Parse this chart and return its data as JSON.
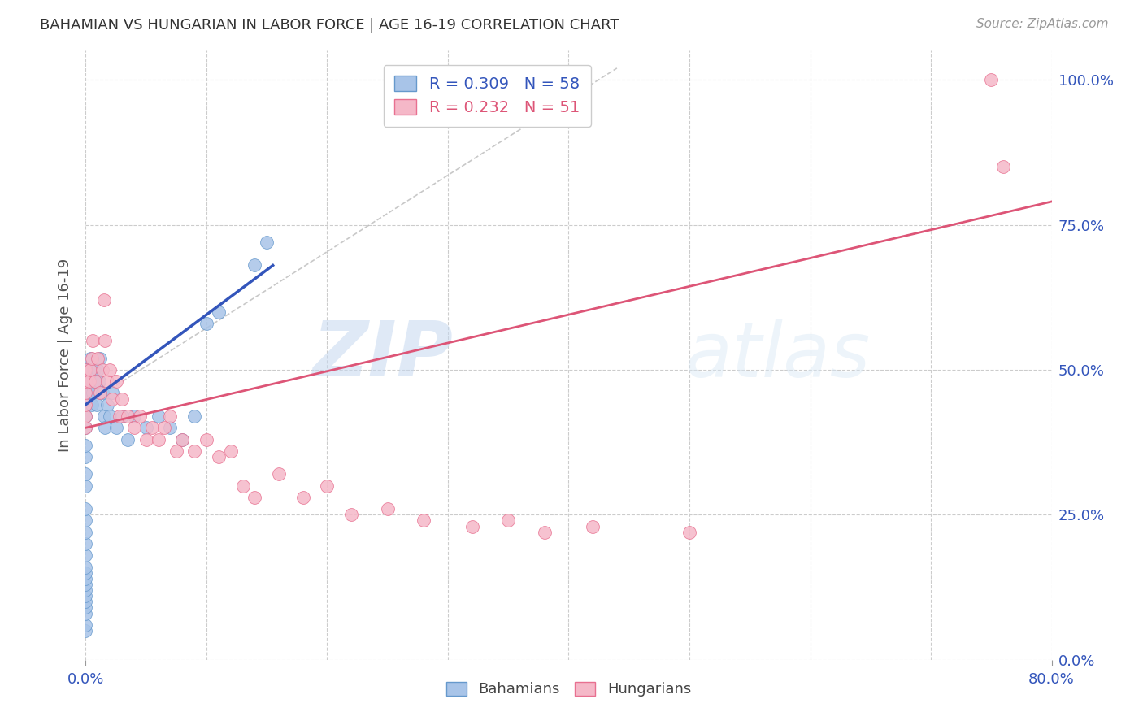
{
  "title": "BAHAMIAN VS HUNGARIAN IN LABOR FORCE | AGE 16-19 CORRELATION CHART",
  "source": "Source: ZipAtlas.com",
  "ylabel": "In Labor Force | Age 16-19",
  "right_yticklabels": [
    "0.0%",
    "25.0%",
    "50.0%",
    "75.0%",
    "100.0%"
  ],
  "right_yticks": [
    0.0,
    0.25,
    0.5,
    0.75,
    1.0
  ],
  "xmin": 0.0,
  "xmax": 0.8,
  "ymin": 0.0,
  "ymax": 1.05,
  "blue_color": "#a8c4e8",
  "pink_color": "#f5b8c8",
  "blue_edge_color": "#6699cc",
  "pink_edge_color": "#e87090",
  "blue_line_color": "#3355bb",
  "pink_line_color": "#dd5577",
  "grid_color": "#cccccc",
  "background_color": "#ffffff",
  "watermark_color": "#dce8f5",
  "blue_r": "0.309",
  "blue_n": "58",
  "pink_r": "0.232",
  "pink_n": "51",
  "bahamian_x": [
    0.0,
    0.0,
    0.0,
    0.0,
    0.0,
    0.0,
    0.0,
    0.0,
    0.0,
    0.0,
    0.0,
    0.0,
    0.0,
    0.0,
    0.0,
    0.0,
    0.0,
    0.0,
    0.0,
    0.0,
    0.0,
    0.0,
    0.0,
    0.001,
    0.001,
    0.001,
    0.002,
    0.002,
    0.003,
    0.004,
    0.005,
    0.005,
    0.006,
    0.007,
    0.008,
    0.009,
    0.01,
    0.011,
    0.012,
    0.014,
    0.015,
    0.016,
    0.018,
    0.02,
    0.022,
    0.025,
    0.03,
    0.035,
    0.04,
    0.05,
    0.06,
    0.07,
    0.08,
    0.09,
    0.1,
    0.11,
    0.14,
    0.15
  ],
  "bahamian_y": [
    0.05,
    0.06,
    0.08,
    0.09,
    0.1,
    0.11,
    0.12,
    0.13,
    0.14,
    0.15,
    0.16,
    0.18,
    0.2,
    0.22,
    0.24,
    0.26,
    0.3,
    0.32,
    0.35,
    0.37,
    0.4,
    0.42,
    0.44,
    0.46,
    0.48,
    0.5,
    0.48,
    0.46,
    0.5,
    0.52,
    0.48,
    0.44,
    0.46,
    0.5,
    0.48,
    0.44,
    0.5,
    0.48,
    0.52,
    0.46,
    0.42,
    0.4,
    0.44,
    0.42,
    0.46,
    0.4,
    0.42,
    0.38,
    0.42,
    0.4,
    0.42,
    0.4,
    0.38,
    0.42,
    0.58,
    0.6,
    0.68,
    0.72
  ],
  "hungarian_x": [
    0.0,
    0.0,
    0.0,
    0.0,
    0.0,
    0.0,
    0.003,
    0.004,
    0.005,
    0.006,
    0.008,
    0.01,
    0.012,
    0.014,
    0.015,
    0.016,
    0.018,
    0.02,
    0.022,
    0.025,
    0.028,
    0.03,
    0.035,
    0.04,
    0.045,
    0.05,
    0.055,
    0.06,
    0.065,
    0.07,
    0.075,
    0.08,
    0.09,
    0.1,
    0.11,
    0.12,
    0.13,
    0.14,
    0.16,
    0.18,
    0.2,
    0.22,
    0.25,
    0.28,
    0.32,
    0.35,
    0.38,
    0.42,
    0.5,
    0.75,
    0.76
  ],
  "hungarian_y": [
    0.4,
    0.42,
    0.44,
    0.46,
    0.48,
    0.5,
    0.48,
    0.5,
    0.52,
    0.55,
    0.48,
    0.52,
    0.46,
    0.5,
    0.62,
    0.55,
    0.48,
    0.5,
    0.45,
    0.48,
    0.42,
    0.45,
    0.42,
    0.4,
    0.42,
    0.38,
    0.4,
    0.38,
    0.4,
    0.42,
    0.36,
    0.38,
    0.36,
    0.38,
    0.35,
    0.36,
    0.3,
    0.28,
    0.32,
    0.28,
    0.3,
    0.25,
    0.26,
    0.24,
    0.23,
    0.24,
    0.22,
    0.23,
    0.22,
    1.0,
    0.85
  ],
  "ref_line_x": [
    0.0,
    0.44
  ],
  "ref_line_y": [
    0.44,
    1.02
  ],
  "blue_line_x": [
    0.0,
    0.155
  ],
  "blue_line_y_start": 0.44,
  "blue_line_y_end": 0.68,
  "pink_line_x": [
    0.0,
    0.8
  ],
  "pink_line_y_start": 0.4,
  "pink_line_y_end": 0.79
}
